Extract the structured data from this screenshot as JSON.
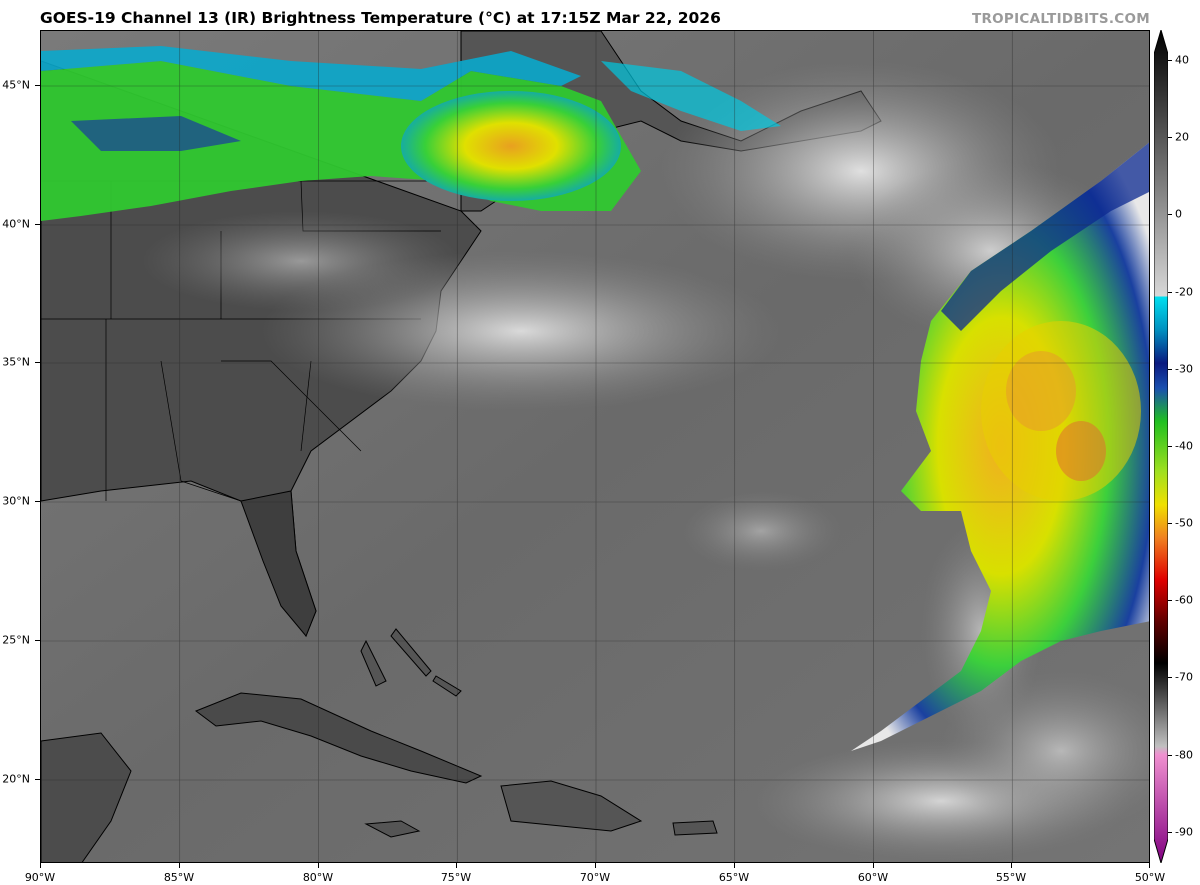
{
  "header": {
    "title": "GOES-19 Channel 13 (IR) Brightness Temperature (°C) at 17:15Z Mar 22, 2026",
    "brand": "TROPICALTIDBITS.COM"
  },
  "map": {
    "lon_ticks": [
      "90°W",
      "85°W",
      "80°W",
      "75°W",
      "70°W",
      "65°W",
      "60°W",
      "55°W",
      "50°W"
    ],
    "lat_ticks": [
      "45°N",
      "40°N",
      "35°N",
      "30°N",
      "25°N",
      "20°N"
    ],
    "extent": {
      "lon_min": -90,
      "lon_max": -50,
      "lat_min": 17,
      "lat_max": 47
    }
  },
  "colorbar": {
    "ticks": [
      "40",
      "20",
      "0",
      "-20",
      "-30",
      "-40",
      "-50",
      "-60",
      "-70",
      "-80",
      "-90"
    ],
    "range": [
      -95,
      45
    ]
  },
  "colors": {
    "ocean": "#6e6e6e",
    "land": "#4a4a4a",
    "cold_cloud_green": "#2bd12b",
    "cold_cloud_yellow": "#e6e600",
    "cold_cloud_orange": "#f08a2a",
    "cyan": "#00d8e8",
    "navy": "#0a1a80"
  }
}
